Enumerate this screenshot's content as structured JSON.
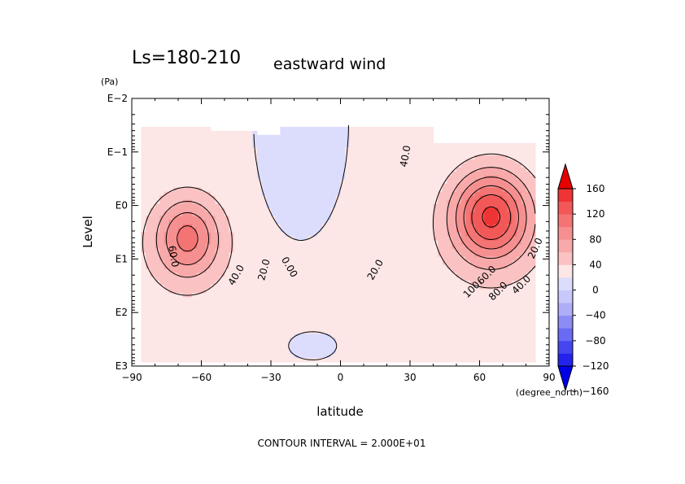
{
  "chart_data": {
    "type": "contour",
    "title": "Ls=180-210",
    "variable": "eastward wind",
    "xlabel": "latitude",
    "x_unit": "(degree_north)",
    "ylabel": "Level",
    "y_unit": "(Pa)",
    "y_scale": "log",
    "xlim": [
      -90,
      90
    ],
    "ylim_exponent": [
      3,
      -2
    ],
    "x_ticks": [
      "−90",
      "−60",
      "−30",
      "0",
      "30",
      "60",
      "90"
    ],
    "y_ticks": [
      "E−2",
      "E−1",
      "E0",
      "E1",
      "E2",
      "E3"
    ],
    "contour_interval": "CONTOUR INTERVAL = 2.000E+01",
    "contour_labels": [
      "60.0",
      "40.0",
      "20.0",
      "0.00",
      "20.0",
      "40.0",
      "60.0",
      "80.0",
      "100.",
      "40.0",
      "20.0"
    ],
    "features": [
      {
        "kind": "max",
        "lat": -66,
        "log10_p": 0.6,
        "value": 80
      },
      {
        "kind": "min",
        "lat": -17,
        "log10_p": -0.4,
        "value": -20
      },
      {
        "kind": "max",
        "lat": 65,
        "log10_p": 0.2,
        "value": 120
      },
      {
        "kind": "min",
        "lat": -12,
        "log10_p": 2.6,
        "value": -20
      }
    ],
    "colorbar": {
      "ticks": [
        "160",
        "120",
        "80",
        "40",
        "0",
        "−40",
        "−80",
        "−120",
        "−160"
      ],
      "levels": [
        -160,
        -140,
        -120,
        -100,
        -80,
        -60,
        -40,
        -20,
        0,
        20,
        40,
        60,
        80,
        100,
        120,
        140,
        160
      ],
      "colors": [
        "#0000e6",
        "#2323ec",
        "#4646f0",
        "#6a6af3",
        "#8c8cf6",
        "#aeaef8",
        "#c8c8fa",
        "#dcdcfc",
        "#fde6e6",
        "#fac2c2",
        "#f8a9a9",
        "#f69090",
        "#f47474",
        "#f25858",
        "#ee3434",
        "#e60000"
      ]
    }
  }
}
